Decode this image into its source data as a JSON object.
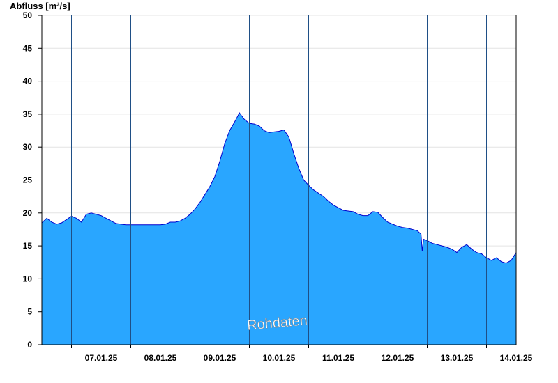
{
  "chart_data": {
    "type": "area",
    "ylabel": "Abfluss [m³/s]",
    "ylim": [
      0,
      50
    ],
    "yticks": [
      0,
      5,
      10,
      15,
      20,
      25,
      30,
      35,
      40,
      45,
      50
    ],
    "xlim": [
      "2025-01-06T12:00",
      "2025-01-14T12:00"
    ],
    "day_boundaries": [
      "2025-01-07T00:00",
      "2025-01-08T00:00",
      "2025-01-09T00:00",
      "2025-01-10T00:00",
      "2025-01-11T00:00",
      "2025-01-12T00:00",
      "2025-01-13T00:00",
      "2025-01-14T00:00"
    ],
    "categories": [
      "07.01.25",
      "08.01.25",
      "09.01.25",
      "10.01.25",
      "11.01.25",
      "12.01.25",
      "13.01.25",
      "14.01.25"
    ],
    "watermark": "Rohdaten",
    "fill_color": "#29a6ff",
    "line_color": "#0000cc",
    "grid": true,
    "series": [
      {
        "x": [
          "2025-01-06T12:00",
          "2025-01-06T14:00",
          "2025-01-06T16:00",
          "2025-01-06T18:00",
          "2025-01-06T20:00",
          "2025-01-06T22:00",
          "2025-01-07T00:00",
          "2025-01-07T02:00",
          "2025-01-07T04:00",
          "2025-01-07T06:00",
          "2025-01-07T08:00",
          "2025-01-07T10:00",
          "2025-01-07T12:00",
          "2025-01-07T14:00",
          "2025-01-07T16:00",
          "2025-01-07T18:00",
          "2025-01-07T20:00",
          "2025-01-07T22:00",
          "2025-01-08T00:00",
          "2025-01-08T02:00",
          "2025-01-08T04:00",
          "2025-01-08T06:00",
          "2025-01-08T08:00",
          "2025-01-08T10:00",
          "2025-01-08T12:00",
          "2025-01-08T14:00",
          "2025-01-08T16:00",
          "2025-01-08T18:00",
          "2025-01-08T20:00",
          "2025-01-08T22:00",
          "2025-01-09T00:00",
          "2025-01-09T02:00",
          "2025-01-09T04:00",
          "2025-01-09T06:00",
          "2025-01-09T08:00",
          "2025-01-09T10:00",
          "2025-01-09T12:00",
          "2025-01-09T14:00",
          "2025-01-09T16:00",
          "2025-01-09T18:00",
          "2025-01-09T20:00",
          "2025-01-09T22:00",
          "2025-01-10T00:00",
          "2025-01-10T02:00",
          "2025-01-10T04:00",
          "2025-01-10T06:00",
          "2025-01-10T08:00",
          "2025-01-10T10:00",
          "2025-01-10T12:00",
          "2025-01-10T14:00",
          "2025-01-10T16:00",
          "2025-01-10T18:00",
          "2025-01-10T20:00",
          "2025-01-10T22:00",
          "2025-01-11T00:00",
          "2025-01-11T02:00",
          "2025-01-11T04:00",
          "2025-01-11T06:00",
          "2025-01-11T08:00",
          "2025-01-11T10:00",
          "2025-01-11T12:00",
          "2025-01-11T14:00",
          "2025-01-11T16:00",
          "2025-01-11T18:00",
          "2025-01-11T20:00",
          "2025-01-11T22:00",
          "2025-01-12T00:00",
          "2025-01-12T02:00",
          "2025-01-12T04:00",
          "2025-01-12T06:00",
          "2025-01-12T08:00",
          "2025-01-12T10:00",
          "2025-01-12T12:00",
          "2025-01-12T14:00",
          "2025-01-12T16:00",
          "2025-01-12T18:00",
          "2025-01-12T20:00",
          "2025-01-12T21:30",
          "2025-01-12T22:00",
          "2025-01-12T22:30",
          "2025-01-13T00:00",
          "2025-01-13T02:00",
          "2025-01-13T04:00",
          "2025-01-13T06:00",
          "2025-01-13T08:00",
          "2025-01-13T10:00",
          "2025-01-13T12:00",
          "2025-01-13T14:00",
          "2025-01-13T16:00",
          "2025-01-13T18:00",
          "2025-01-13T20:00",
          "2025-01-13T22:00",
          "2025-01-14T00:00",
          "2025-01-14T02:00",
          "2025-01-14T04:00",
          "2025-01-14T06:00",
          "2025-01-14T08:00",
          "2025-01-14T10:00",
          "2025-01-14T12:00"
        ],
        "values": [
          18.5,
          19.2,
          18.6,
          18.3,
          18.5,
          19.0,
          19.5,
          19.2,
          18.6,
          19.8,
          20.0,
          19.8,
          19.6,
          19.2,
          18.8,
          18.4,
          18.3,
          18.2,
          18.2,
          18.2,
          18.2,
          18.2,
          18.2,
          18.2,
          18.2,
          18.3,
          18.6,
          18.6,
          18.8,
          19.2,
          19.8,
          20.6,
          21.6,
          22.8,
          24.0,
          25.5,
          27.8,
          30.5,
          32.5,
          33.8,
          35.2,
          34.2,
          33.6,
          33.5,
          33.2,
          32.5,
          32.2,
          32.3,
          32.4,
          32.6,
          31.5,
          29.0,
          26.8,
          25.0,
          24.2,
          23.5,
          23.0,
          22.5,
          21.8,
          21.2,
          20.8,
          20.4,
          20.3,
          20.2,
          19.8,
          19.6,
          19.6,
          20.2,
          20.1,
          19.3,
          18.6,
          18.3,
          18.0,
          17.8,
          17.7,
          17.5,
          17.3,
          16.8,
          14.2,
          16.0,
          15.8,
          15.4,
          15.2,
          15.0,
          14.8,
          14.5,
          14.0,
          14.8,
          15.2,
          14.5,
          14.0,
          13.8,
          13.2,
          12.8,
          13.2,
          12.6,
          12.4,
          12.8,
          14.0
        ]
      }
    ]
  }
}
